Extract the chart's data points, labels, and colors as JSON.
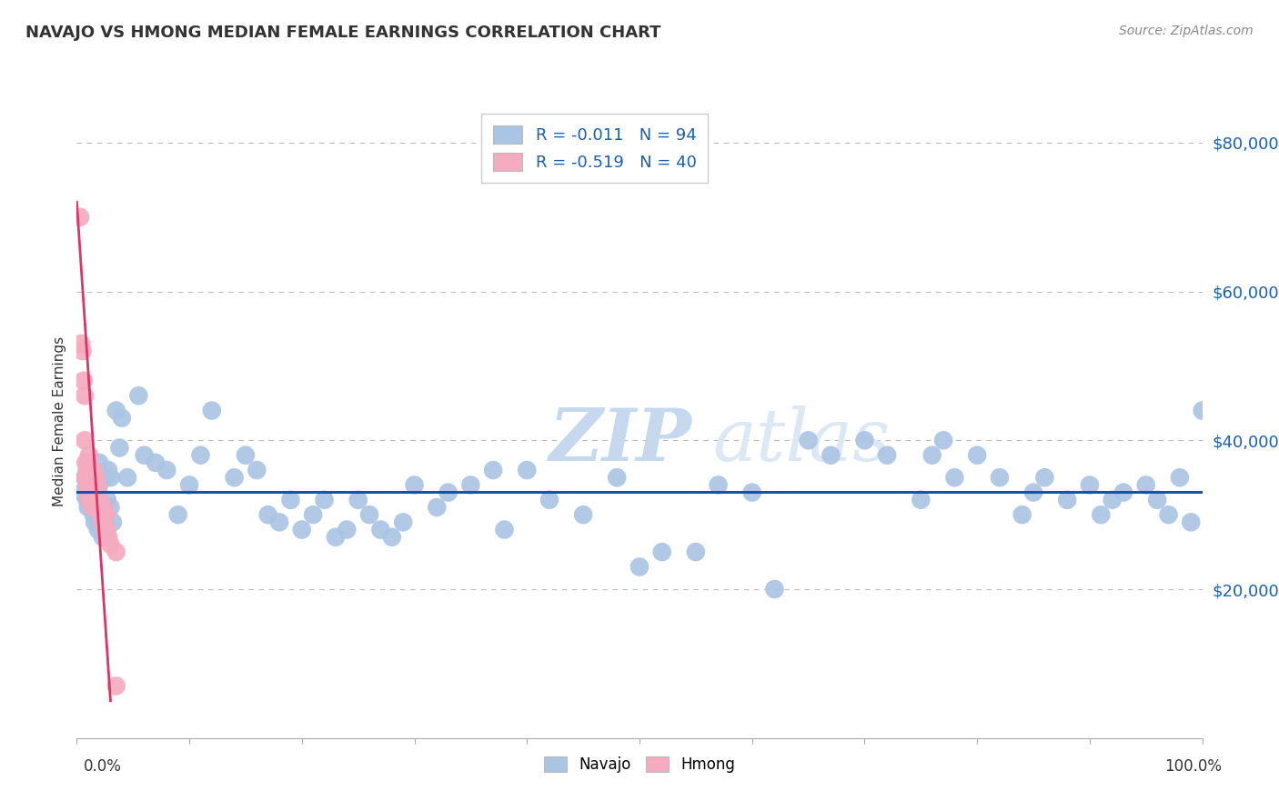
{
  "title": "NAVAJO VS HMONG MEDIAN FEMALE EARNINGS CORRELATION CHART",
  "source": "Source: ZipAtlas.com",
  "ylabel": "Median Female Earnings",
  "navajo_R": -0.011,
  "navajo_N": 94,
  "hmong_R": -0.519,
  "hmong_N": 40,
  "navajo_color": "#aac4e4",
  "hmong_color": "#f5aabf",
  "navajo_line_color": "#1155aa",
  "hmong_line_color": "#dd3366",
  "watermark_zip": "ZIP",
  "watermark_atlas": "atlas",
  "xlim": [
    0,
    100
  ],
  "ylim": [
    0,
    85000
  ],
  "yticks": [
    20000,
    40000,
    60000,
    80000
  ],
  "ytick_labels": [
    "$20,000",
    "$40,000",
    "$60,000",
    "$80,000"
  ],
  "navajo_x": [
    0.5,
    0.7,
    0.9,
    1.0,
    1.1,
    1.2,
    1.3,
    1.5,
    1.6,
    1.7,
    1.8,
    1.9,
    2.0,
    2.0,
    2.1,
    2.2,
    2.3,
    2.4,
    2.5,
    2.5,
    2.6,
    2.7,
    2.8,
    3.0,
    3.0,
    3.2,
    3.5,
    3.8,
    4.0,
    4.5,
    5.5,
    6.0,
    7.0,
    8.0,
    9.0,
    10.0,
    11.0,
    12.0,
    14.0,
    15.0,
    16.0,
    17.0,
    18.0,
    19.0,
    20.0,
    21.0,
    22.0,
    23.0,
    24.0,
    25.0,
    26.0,
    27.0,
    28.0,
    29.0,
    30.0,
    32.0,
    33.0,
    35.0,
    37.0,
    38.0,
    40.0,
    42.0,
    45.0,
    48.0,
    50.0,
    52.0,
    55.0,
    57.0,
    60.0,
    62.0,
    65.0,
    67.0,
    70.0,
    72.0,
    75.0,
    76.0,
    77.0,
    78.0,
    80.0,
    82.0,
    84.0,
    85.0,
    86.0,
    88.0,
    90.0,
    91.0,
    92.0,
    93.0,
    95.0,
    96.0,
    97.0,
    98.0,
    99.0,
    100.0
  ],
  "navajo_y": [
    33000,
    35000,
    32000,
    31000,
    34000,
    36000,
    33000,
    30000,
    29000,
    32000,
    35000,
    28000,
    34000,
    37000,
    30000,
    29000,
    27000,
    31000,
    35000,
    29000,
    28000,
    32000,
    36000,
    35000,
    31000,
    29000,
    44000,
    39000,
    43000,
    35000,
    46000,
    38000,
    37000,
    36000,
    30000,
    34000,
    38000,
    44000,
    35000,
    38000,
    36000,
    30000,
    29000,
    32000,
    28000,
    30000,
    32000,
    27000,
    28000,
    32000,
    30000,
    28000,
    27000,
    29000,
    34000,
    31000,
    33000,
    34000,
    36000,
    28000,
    36000,
    32000,
    30000,
    35000,
    23000,
    25000,
    25000,
    34000,
    33000,
    20000,
    40000,
    38000,
    40000,
    38000,
    32000,
    38000,
    40000,
    35000,
    38000,
    35000,
    30000,
    33000,
    35000,
    32000,
    34000,
    30000,
    32000,
    33000,
    34000,
    32000,
    30000,
    35000,
    29000,
    44000
  ],
  "hmong_x": [
    0.3,
    0.4,
    0.5,
    0.6,
    0.7,
    0.7,
    0.8,
    0.8,
    0.9,
    0.9,
    1.0,
    1.0,
    1.0,
    1.1,
    1.1,
    1.1,
    1.2,
    1.2,
    1.3,
    1.3,
    1.4,
    1.4,
    1.5,
    1.5,
    1.6,
    1.7,
    1.8,
    1.9,
    2.0,
    2.1,
    2.2,
    2.3,
    2.4,
    2.5,
    2.6,
    2.7,
    2.8,
    3.0,
    3.5,
    3.5
  ],
  "hmong_y": [
    70000,
    53000,
    52000,
    48000,
    46000,
    40000,
    37000,
    35000,
    36000,
    34000,
    37000,
    35000,
    33000,
    38000,
    35000,
    32000,
    36000,
    33000,
    35000,
    32000,
    34000,
    31000,
    36000,
    33000,
    32000,
    35000,
    34000,
    33000,
    32000,
    31000,
    30000,
    29000,
    31000,
    28000,
    30000,
    28000,
    27000,
    26000,
    25000,
    7000
  ],
  "hmong_line_x0": 0.0,
  "hmong_line_y0": 72000,
  "hmong_line_x1": 3.0,
  "hmong_line_y1": 5000
}
